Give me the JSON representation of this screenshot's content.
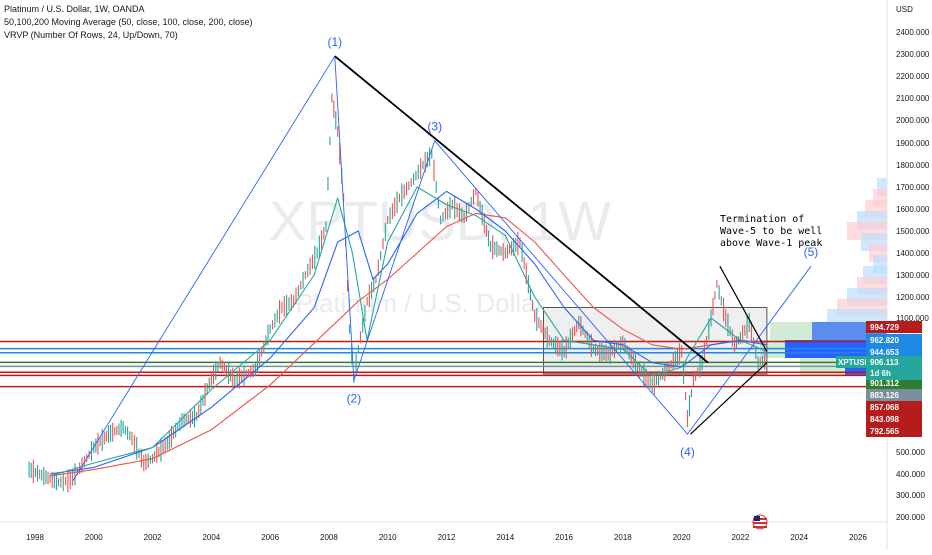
{
  "header": {
    "symbol_line": "Platinum / U.S. Dollar, 1W, OANDA",
    "ma_line": "50,100,200 Moving Average (50, close, 100, close, 200, close)",
    "vrvp_line": "VRVP (Number Of Rows, 24, Up/Down, 70)"
  },
  "watermark": {
    "ticker": "XPTUSD, 1W",
    "name": "Platinum / U.S. Dollar"
  },
  "currency_label": "USD",
  "price_badge": {
    "ticker": "XPTUSD",
    "price": "906.113",
    "countdown": "1d 6h"
  },
  "flag_icon": "us-flag-icon",
  "annotation": {
    "lines": [
      "Termination of",
      "Wave-5 to be well",
      "above Wave-1 peak"
    ]
  },
  "wave_labels": [
    "(1)",
    "(2)",
    "(3)",
    "(4)",
    "(5)"
  ],
  "colors": {
    "bull": "#26a69a",
    "bear": "#ef5350",
    "ma50": "#26a69a",
    "ma100": "#2962ff",
    "ma200": "#ef5350",
    "elliott": "#2962ff",
    "trendline": "#000000",
    "support": "#b71c1c"
  },
  "chart_data": {
    "type": "line",
    "title": "Platinum / U.S. Dollar, 1W, OANDA",
    "xlabel": "",
    "ylabel": "USD",
    "xlim": [
      1997.0,
      2027.0
    ],
    "ylim": [
      150,
      2520
    ],
    "x_ticks": [
      1998,
      2000,
      2002,
      2004,
      2006,
      2008,
      2010,
      2012,
      2014,
      2016,
      2018,
      2020,
      2022,
      2024,
      2026
    ],
    "y_ticks": [
      200,
      300,
      400,
      500,
      1100,
      1200,
      1300,
      1400,
      1500,
      1600,
      1700,
      1800,
      1900,
      2000,
      2100,
      2200,
      2300,
      2400
    ],
    "series": [
      {
        "name": "Platinum / U.S. Dollar",
        "x": [
          1997.8,
          1998.3,
          1998.8,
          1999.2,
          1999.6,
          2000.0,
          2000.5,
          2001.0,
          2001.3,
          2001.7,
          2002.0,
          2002.5,
          2003.0,
          2003.5,
          2004.0,
          2004.3,
          2004.8,
          2005.5,
          2006.0,
          2006.4,
          2006.8,
          2007.2,
          2007.6,
          2007.9,
          2008.1,
          2008.3,
          2008.5,
          2008.7,
          2008.85,
          2009.0,
          2009.3,
          2009.6,
          2010.0,
          2010.4,
          2010.8,
          2011.2,
          2011.5,
          2011.8,
          2012.2,
          2012.6,
          2013.0,
          2013.5,
          2014.0,
          2014.5,
          2015.0,
          2015.5,
          2016.0,
          2016.5,
          2017.0,
          2017.5,
          2018.0,
          2018.5,
          2019.0,
          2019.5,
          2020.0,
          2020.2,
          2020.4,
          2020.7,
          2021.0,
          2021.2,
          2021.5,
          2021.8,
          2022.0,
          2022.3,
          2022.6,
          2022.9
        ],
        "values": [
          420,
          390,
          360,
          370,
          440,
          520,
          580,
          610,
          560,
          450,
          470,
          540,
          640,
          660,
          830,
          900,
          820,
          870,
          1050,
          1150,
          1180,
          1300,
          1400,
          1520,
          2100,
          1950,
          1650,
          1050,
          830,
          960,
          1180,
          1280,
          1550,
          1650,
          1720,
          1800,
          1850,
          1550,
          1620,
          1560,
          1680,
          1430,
          1400,
          1450,
          1110,
          1000,
          950,
          1080,
          960,
          940,
          990,
          880,
          800,
          870,
          950,
          650,
          820,
          900,
          1100,
          1260,
          1100,
          980,
          1010,
          1080,
          900,
          920
        ]
      },
      {
        "name": "MA 50",
        "x": [
          1998.5,
          2000.0,
          2002.0,
          2004.0,
          2006.0,
          2007.5,
          2008.3,
          2008.8,
          2009.3,
          2010.0,
          2011.0,
          2012.0,
          2013.0,
          2014.0,
          2015.0,
          2016.0,
          2017.0,
          2018.0,
          2019.0,
          2020.0,
          2021.0,
          2022.0,
          2022.9
        ],
        "values": [
          390,
          450,
          520,
          780,
          1000,
          1300,
          1650,
          1400,
          1000,
          1450,
          1700,
          1620,
          1570,
          1480,
          1200,
          1000,
          980,
          960,
          840,
          880,
          1100,
          1000,
          950
        ]
      },
      {
        "name": "MA 100",
        "x": [
          1998.5,
          2000.0,
          2002.0,
          2004.0,
          2006.0,
          2007.5,
          2008.3,
          2009.0,
          2009.5,
          2010.0,
          2011.0,
          2012.0,
          2013.0,
          2014.0,
          2015.0,
          2016.0,
          2017.0,
          2018.0,
          2019.0,
          2020.0,
          2021.0,
          2022.0,
          2022.9
        ],
        "values": [
          400,
          430,
          520,
          700,
          920,
          1150,
          1450,
          1500,
          1280,
          1350,
          1580,
          1680,
          1600,
          1500,
          1350,
          1150,
          1000,
          980,
          900,
          880,
          980,
          1000,
          980
        ]
      },
      {
        "name": "MA 200",
        "x": [
          1998.5,
          2000.0,
          2002.0,
          2004.0,
          2006.0,
          2008.0,
          2009.0,
          2010.0,
          2011.0,
          2012.0,
          2013.0,
          2014.0,
          2015.0,
          2016.0,
          2017.0,
          2018.0,
          2019.0,
          2020.0,
          2021.0,
          2022.0,
          2022.9
        ],
        "values": [
          390,
          420,
          470,
          600,
          800,
          1050,
          1180,
          1280,
          1400,
          1520,
          1580,
          1560,
          1450,
          1300,
          1150,
          1050,
          980,
          960,
          980,
          1000,
          990
        ]
      },
      {
        "name": "Elliott wave count",
        "x": [
          1999.3,
          2008.2,
          2008.85,
          2011.6,
          2020.2,
          2024.4
        ],
        "values": [
          370,
          2290,
          820,
          1910,
          580,
          1340
        ]
      },
      {
        "name": "Trendlines",
        "x": [
          2008.2,
          2020.9,
          2021.3,
          2022.9,
          2022.9,
          2020.3
        ],
        "values": [
          2290,
          900,
          1340,
          950,
          900,
          580
        ]
      }
    ],
    "wave_points": [
      {
        "label": "(1)",
        "x": 2008.2,
        "y": 2290
      },
      {
        "label": "(2)",
        "x": 2008.85,
        "y": 820
      },
      {
        "label": "(3)",
        "x": 2011.6,
        "y": 1910
      },
      {
        "label": "(4)",
        "x": 2020.2,
        "y": 580
      },
      {
        "label": "(5)",
        "x": 2024.4,
        "y": 1340
      }
    ],
    "horizontal_levels": [
      {
        "label": "994.729",
        "value": 994.729,
        "color": "#b71c1c"
      },
      {
        "label": "962.820",
        "value": 962.82,
        "color": "#1e88e5"
      },
      {
        "label": "944.653",
        "value": 944.653,
        "color": "#1e88e5"
      },
      {
        "label": "901.312",
        "value": 901.312,
        "color": "#2e7d32"
      },
      {
        "label": "883.126",
        "value": 883.126,
        "color": "#78909c"
      },
      {
        "label": "857.068",
        "value": 857.068,
        "color": "#b71c1c"
      },
      {
        "label": "843.098",
        "value": 843.098,
        "color": "#b71c1c"
      },
      {
        "label": "792.565",
        "value": 792.565,
        "color": "#b71c1c"
      }
    ],
    "consolidation_box": {
      "x": [
        2015.3,
        2022.9
      ],
      "y": [
        850,
        1150
      ]
    },
    "volume_profile": [
      {
        "price": 200,
        "value": 0
      }
    ],
    "grid": false,
    "legend": "top-left"
  }
}
